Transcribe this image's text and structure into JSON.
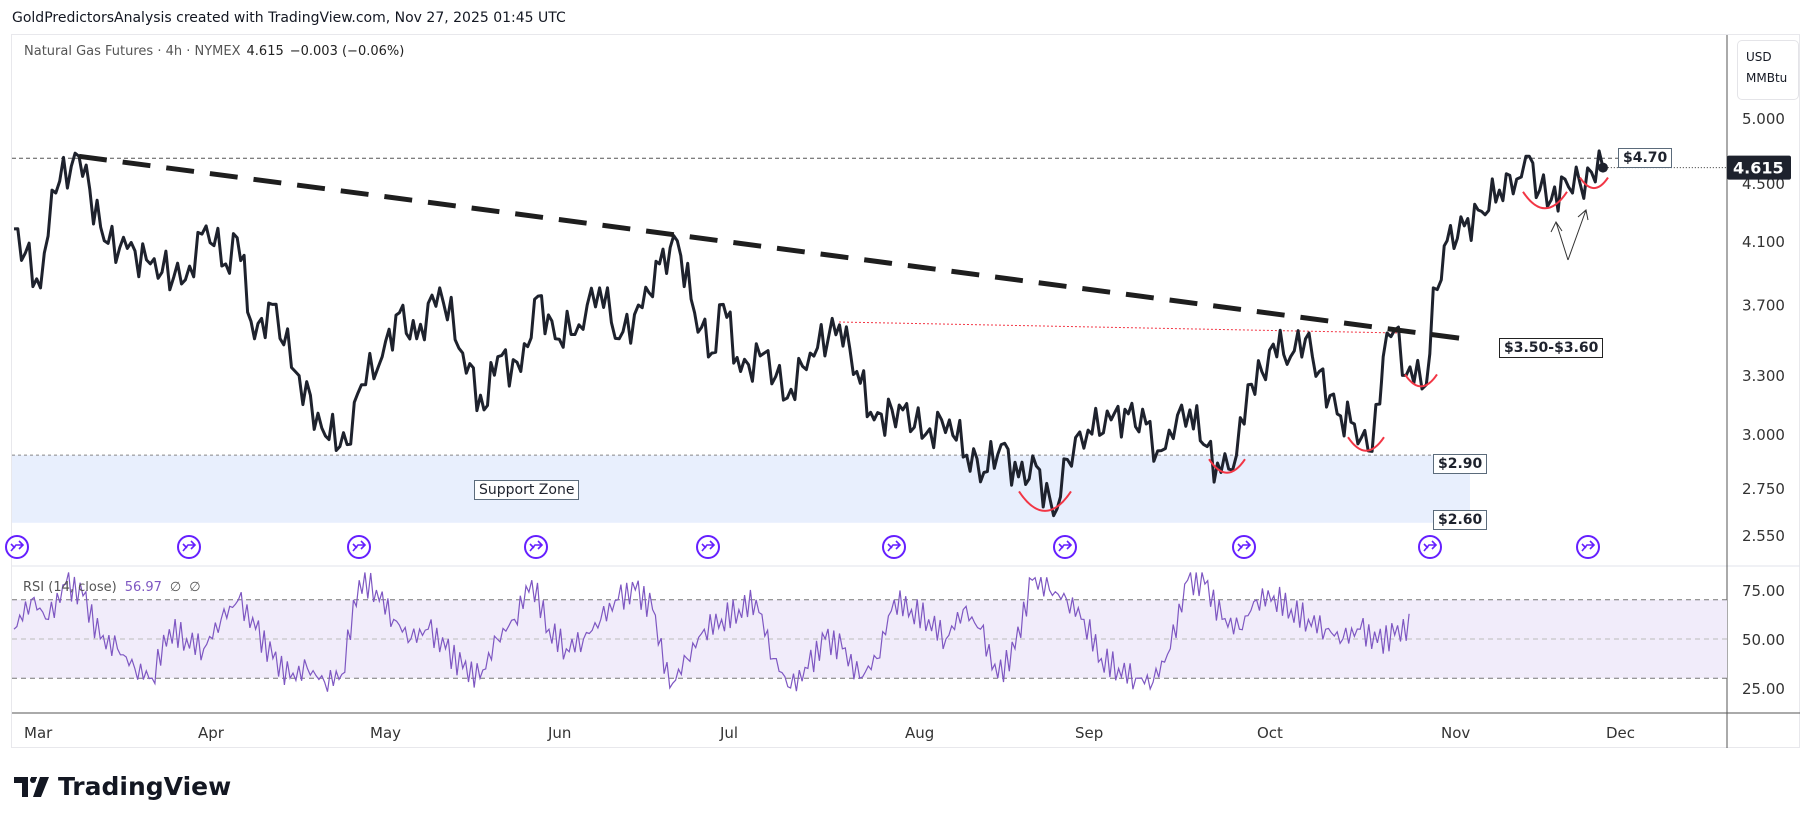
{
  "header": "GoldPredictorsAnalysis created with TradingView.com, Nov 27, 2025 01:45 UTC",
  "symbol": {
    "name": "Natural Gas Futures · 4h · NYMEX",
    "last": "4.615",
    "change": "−0.003 (−0.06%)"
  },
  "unit": {
    "currency": "USD",
    "measure": "MMBtu"
  },
  "price_axis": {
    "ticks": [
      "5.000",
      "4.500",
      "4.100",
      "3.700",
      "3.300",
      "3.000",
      "2.750",
      "2.550"
    ],
    "current": "4.615"
  },
  "rsi": {
    "title": "RSI (14, close)",
    "value": "56.97",
    "extra1": "∅",
    "extra2": "∅",
    "ticks": [
      "75.00",
      "50.00",
      "25.00"
    ]
  },
  "time_axis": [
    "Mar",
    "Apr",
    "May",
    "Jun",
    "Jul",
    "Aug",
    "Sep",
    "Oct",
    "Nov",
    "Dec"
  ],
  "annotations": {
    "support": "Support Zone",
    "l290": "$2.90",
    "l260": "$2.60",
    "l350": "$3.50-$3.60",
    "l470": "$4.70"
  },
  "brand": "TradingView",
  "colors": {
    "price": "#1e222d",
    "rsi": "#7e57c2",
    "support": "#e8effd",
    "arc": "#f23645",
    "event": "#651fff"
  },
  "chart_data": {
    "type": "line",
    "title": "Natural Gas Futures · 4h · NYMEX",
    "x_unit": "days since Mar 1, 2025",
    "y_scale": "log",
    "ylim": [
      2.5,
      5.2
    ],
    "price": [
      [
        -4,
        4.18
      ],
      [
        0.6,
        3.8
      ],
      [
        2.6,
        4.45
      ],
      [
        7.3,
        4.7
      ],
      [
        11.7,
        4.1
      ],
      [
        15.7,
        4.05
      ],
      [
        19.7,
        3.95
      ],
      [
        25.8,
        3.85
      ],
      [
        29.4,
        4.2
      ],
      [
        32.8,
        3.95
      ],
      [
        34.8,
        4.12
      ],
      [
        37.8,
        3.5
      ],
      [
        40.9,
        3.7
      ],
      [
        44.9,
        3.32
      ],
      [
        49.5,
        3.03
      ],
      [
        53.9,
        2.95
      ],
      [
        56.4,
        3.25
      ],
      [
        60,
        3.4
      ],
      [
        63,
        3.65
      ],
      [
        66,
        3.5
      ],
      [
        70,
        3.8
      ],
      [
        74,
        3.42
      ],
      [
        77.7,
        3.12
      ],
      [
        80.1,
        3.4
      ],
      [
        84.1,
        3.32
      ],
      [
        87.1,
        3.75
      ],
      [
        90.1,
        3.5
      ],
      [
        94.2,
        3.58
      ],
      [
        97.8,
        3.8
      ],
      [
        101.2,
        3.5
      ],
      [
        105.2,
        3.68
      ],
      [
        108.2,
        3.95
      ],
      [
        111.3,
        4.1
      ],
      [
        114.3,
        3.65
      ],
      [
        117.3,
        3.42
      ],
      [
        119.3,
        3.7
      ],
      [
        122.3,
        3.32
      ],
      [
        126.4,
        3.42
      ],
      [
        130.4,
        3.18
      ],
      [
        134.4,
        3.42
      ],
      [
        139.5,
        3.58
      ],
      [
        142.5,
        3.32
      ],
      [
        145.5,
        3.07
      ],
      [
        150.5,
        3.12
      ],
      [
        154.5,
        3.0
      ],
      [
        158.6,
        3.07
      ],
      [
        161.6,
        2.9
      ],
      [
        164.6,
        2.82
      ],
      [
        167.6,
        2.95
      ],
      [
        170.6,
        2.8
      ],
      [
        173.7,
        2.85
      ],
      [
        176.7,
        2.63
      ],
      [
        179.1,
        2.88
      ],
      [
        182.7,
        3.02
      ],
      [
        186.7,
        3.07
      ],
      [
        189.7,
        3.1
      ],
      [
        192.8,
        3.05
      ],
      [
        194.8,
        2.92
      ],
      [
        196.8,
        3.02
      ],
      [
        200.4,
        3.12
      ],
      [
        202.8,
        2.95
      ],
      [
        205.8,
        2.82
      ],
      [
        208.5,
        2.9
      ],
      [
        210.5,
        3.25
      ],
      [
        212.9,
        3.32
      ],
      [
        214.9,
        3.47
      ],
      [
        217.9,
        3.4
      ],
      [
        220.5,
        3.5
      ],
      [
        222.9,
        3.32
      ],
      [
        226,
        3.1
      ],
      [
        229,
        3.05
      ],
      [
        231.4,
        2.92
      ],
      [
        233.4,
        3.15
      ],
      [
        234,
        3.4
      ],
      [
        236,
        3.55
      ],
      [
        238,
        3.3
      ],
      [
        240,
        3.38
      ],
      [
        241.5,
        3.25
      ],
      [
        242.7,
        3.8
      ],
      [
        244.1,
        3.85
      ],
      [
        245.1,
        4.1
      ],
      [
        248.1,
        4.2
      ],
      [
        251.1,
        4.3
      ],
      [
        254.2,
        4.45
      ],
      [
        257.2,
        4.53
      ],
      [
        258.8,
        4.7
      ],
      [
        261.2,
        4.45
      ],
      [
        263.2,
        4.38
      ],
      [
        265.6,
        4.53
      ],
      [
        268.2,
        4.5
      ],
      [
        270.2,
        4.58
      ],
      [
        272.2,
        4.615
      ]
    ],
    "rsi_series": {
      "start_day": -4,
      "step_days": 3,
      "values": [
        55,
        70,
        60,
        78,
        72,
        50,
        45,
        35,
        30,
        55,
        50,
        45,
        60,
        70,
        55,
        40,
        30,
        35,
        28,
        32,
        80,
        75,
        60,
        50,
        55,
        45,
        35,
        30,
        50,
        60,
        80,
        55,
        45,
        50,
        60,
        70,
        75,
        65,
        25,
        40,
        55,
        60,
        65,
        70,
        40,
        25,
        35,
        50,
        45,
        30,
        40,
        70,
        65,
        60,
        50,
        65,
        55,
        30,
        45,
        80,
        75,
        70,
        60,
        40,
        35,
        30,
        28,
        45,
        80,
        78,
        60,
        55,
        70,
        72,
        65,
        60,
        55,
        50,
        55,
        48,
        52,
        57
      ],
      "bands": [
        30,
        50,
        70
      ],
      "ylim": [
        15,
        85
      ]
    },
    "levels": {
      "resistance": 4.7,
      "breakout": [
        3.5,
        3.6
      ],
      "support": [
        2.6,
        2.9
      ],
      "trendline": [
        [
          7.3,
          4.7
        ],
        [
          248,
          3.5
        ]
      ]
    }
  }
}
